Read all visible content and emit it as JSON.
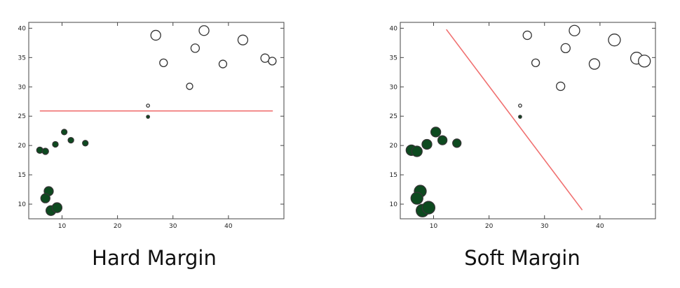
{
  "chart_data": [
    {
      "type": "scatter",
      "title": "",
      "caption": "Hard Margin",
      "xlabel": "",
      "ylabel": "",
      "xlim": [
        4,
        50
      ],
      "ylim": [
        7.5,
        41
      ],
      "xticks": [
        10,
        20,
        30,
        40
      ],
      "yticks": [
        10,
        15,
        20,
        25,
        30,
        35,
        40
      ],
      "grid": false,
      "colors": {
        "positive_fill": "#ffffff",
        "negative_fill": "#0d4a1f",
        "stroke": "#333333",
        "boundary": "#f07070"
      },
      "series": [
        {
          "class": "white",
          "points": [
            {
              "x": 26.9,
              "y": 38.8,
              "s": 7
            },
            {
              "x": 35.6,
              "y": 39.6,
              "s": 7
            },
            {
              "x": 42.6,
              "y": 38.0,
              "s": 7
            },
            {
              "x": 34.0,
              "y": 36.6,
              "s": 6
            },
            {
              "x": 28.3,
              "y": 34.1,
              "s": 5.5
            },
            {
              "x": 39.0,
              "y": 33.9,
              "s": 5.5
            },
            {
              "x": 46.6,
              "y": 34.9,
              "s": 6
            },
            {
              "x": 47.9,
              "y": 34.4,
              "s": 5.5
            },
            {
              "x": 33.0,
              "y": 30.1,
              "s": 4.5
            },
            {
              "x": 25.5,
              "y": 26.8,
              "s": 2.2
            }
          ]
        },
        {
          "class": "dark",
          "points": [
            {
              "x": 25.5,
              "y": 24.9,
              "s": 2.2
            },
            {
              "x": 10.4,
              "y": 22.3,
              "s": 4
            },
            {
              "x": 11.6,
              "y": 20.9,
              "s": 4
            },
            {
              "x": 14.2,
              "y": 20.4,
              "s": 4
            },
            {
              "x": 8.8,
              "y": 20.2,
              "s": 4
            },
            {
              "x": 6.0,
              "y": 19.2,
              "s": 4.5
            },
            {
              "x": 7.0,
              "y": 19.0,
              "s": 4.5
            },
            {
              "x": 7.6,
              "y": 12.2,
              "s": 6.5
            },
            {
              "x": 7.0,
              "y": 11.0,
              "s": 6.5
            },
            {
              "x": 8.0,
              "y": 8.9,
              "s": 7
            },
            {
              "x": 9.1,
              "y": 9.4,
              "s": 7
            }
          ]
        }
      ],
      "boundary": {
        "x1": 6,
        "y1": 25.9,
        "x2": 48,
        "y2": 25.9
      }
    },
    {
      "type": "scatter",
      "title": "",
      "caption": "Soft Margin",
      "xlabel": "",
      "ylabel": "",
      "xlim": [
        4,
        50
      ],
      "ylim": [
        7.5,
        41
      ],
      "xticks": [
        10,
        20,
        30,
        40
      ],
      "yticks": [
        10,
        15,
        20,
        25,
        30,
        35,
        40
      ],
      "grid": false,
      "colors": {
        "positive_fill": "#ffffff",
        "negative_fill": "#0d4a1f",
        "stroke": "#333333",
        "boundary": "#f07070"
      },
      "series": [
        {
          "class": "white",
          "points": [
            {
              "x": 26.9,
              "y": 38.8,
              "s": 6
            },
            {
              "x": 35.4,
              "y": 39.6,
              "s": 7.5
            },
            {
              "x": 42.6,
              "y": 38.0,
              "s": 8.5
            },
            {
              "x": 33.8,
              "y": 36.6,
              "s": 6.5
            },
            {
              "x": 28.4,
              "y": 34.1,
              "s": 5.5
            },
            {
              "x": 39.0,
              "y": 33.9,
              "s": 7.5
            },
            {
              "x": 46.6,
              "y": 34.9,
              "s": 8.5
            },
            {
              "x": 48.0,
              "y": 34.4,
              "s": 8.5
            },
            {
              "x": 32.9,
              "y": 30.1,
              "s": 6
            },
            {
              "x": 25.6,
              "y": 26.8,
              "s": 2.2
            }
          ]
        },
        {
          "class": "dark",
          "points": [
            {
              "x": 25.6,
              "y": 24.9,
              "s": 2.2
            },
            {
              "x": 10.4,
              "y": 22.3,
              "s": 7
            },
            {
              "x": 11.6,
              "y": 20.9,
              "s": 6.5
            },
            {
              "x": 14.2,
              "y": 20.4,
              "s": 6
            },
            {
              "x": 8.8,
              "y": 20.2,
              "s": 7
            },
            {
              "x": 6.0,
              "y": 19.2,
              "s": 7.5
            },
            {
              "x": 7.0,
              "y": 19.0,
              "s": 7.5
            },
            {
              "x": 7.6,
              "y": 12.2,
              "s": 8.5
            },
            {
              "x": 7.0,
              "y": 11.0,
              "s": 8.5
            },
            {
              "x": 8.0,
              "y": 8.9,
              "s": 9
            },
            {
              "x": 9.1,
              "y": 9.4,
              "s": 9
            }
          ]
        }
      ],
      "boundary": {
        "x1": 12.3,
        "y1": 39.8,
        "x2": 36.8,
        "y2": 9.0
      }
    }
  ]
}
